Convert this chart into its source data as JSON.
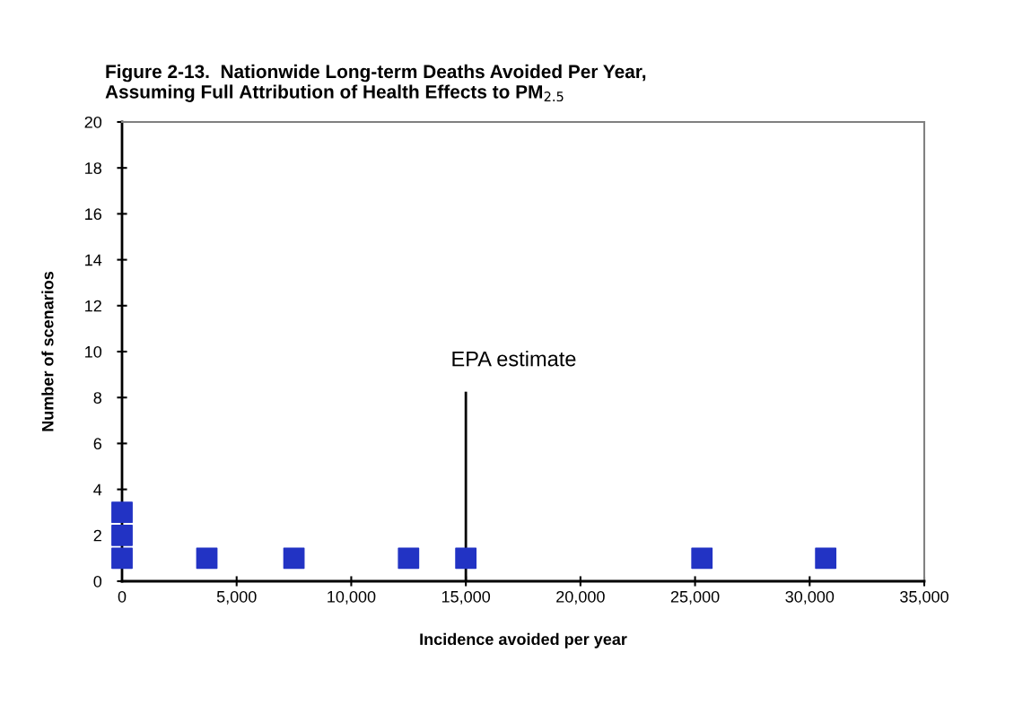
{
  "chart_data": {
    "type": "scatter",
    "title": "Figure 2-13.  Nationwide Long-term Deaths Avoided Per Year,\nAssuming Full Attribution of Health Effects to PM$_{2.5}$",
    "xlabel": "Incidence avoided per year",
    "ylabel": "Number of scenarios",
    "series": [
      {
        "type": "scatter",
        "color": "#2233c4",
        "marker": "square",
        "x": [
          0,
          0,
          0,
          3700,
          7500,
          12500,
          15000,
          25300,
          30700
        ],
        "values": [
          1,
          2,
          3,
          1,
          1,
          1,
          1,
          1,
          1
        ]
      },
      {
        "type": "line",
        "color": "#000000",
        "marker": "none",
        "line_style": "solid",
        "x": [
          15000,
          15000
        ],
        "values": [
          0,
          8.2
        ]
      }
    ],
    "annotations": [
      {
        "text": "EPA estimate",
        "x": 15000,
        "y": 8.2
      }
    ],
    "xlim": [
      0,
      35000
    ],
    "xticks": [
      0,
      {
        "value": 5000,
        "label": "5,000"
      },
      {
        "value": 10000,
        "label": "10,000"
      },
      {
        "value": 15000,
        "label": "15,000"
      },
      {
        "value": 20000,
        "label": "20,000"
      },
      {
        "value": 25000,
        "label": "25,000"
      },
      {
        "value": 30000,
        "label": "30,000"
      },
      {
        "value": 35000,
        "label": "35,000"
      }
    ],
    "ylim": [
      0,
      20
    ],
    "yticks": [
      0,
      2,
      4,
      6,
      8,
      10,
      12,
      14,
      16,
      18,
      20
    ],
    "grid": false,
    "legend": false
  }
}
